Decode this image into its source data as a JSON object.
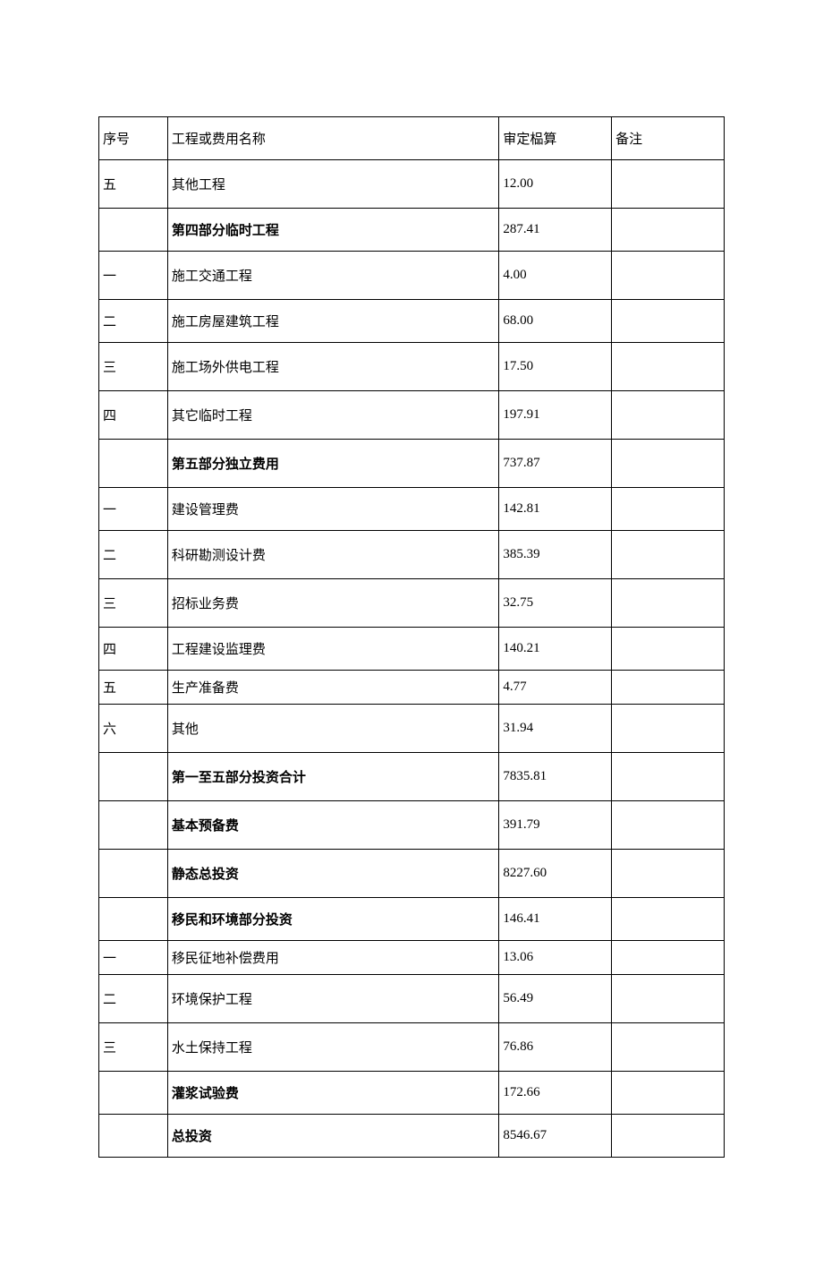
{
  "table": {
    "border_color": "#000000",
    "background_color": "#ffffff",
    "text_color": "#000000",
    "font_size": 15,
    "columns": [
      {
        "key": "seq",
        "label": "序号",
        "width_pct": 11
      },
      {
        "key": "name",
        "label": "工程或费用名称",
        "width_pct": 53
      },
      {
        "key": "value",
        "label": "审定榀算",
        "width_pct": 18
      },
      {
        "key": "remark",
        "label": "备注",
        "width_pct": 18
      }
    ],
    "rows": [
      {
        "seq": "五",
        "name": "其他工程",
        "value": "12.00",
        "remark": "",
        "bold": false,
        "height": "tall"
      },
      {
        "seq": "",
        "name": "第四部分临时工程",
        "value": "287.41",
        "remark": "",
        "bold": true,
        "height": ""
      },
      {
        "seq": "一",
        "name": "施工交通工程",
        "value": "4.00",
        "remark": "",
        "bold": false,
        "height": "tall"
      },
      {
        "seq": "二",
        "name": "施工房屋建筑工程",
        "value": "68.00",
        "remark": "",
        "bold": false,
        "height": ""
      },
      {
        "seq": "三",
        "name": "施工场外供电工程",
        "value": "17.50",
        "remark": "",
        "bold": false,
        "height": "tall"
      },
      {
        "seq": "四",
        "name": "其它临时工程",
        "value": "197.91",
        "remark": "",
        "bold": false,
        "height": "tall"
      },
      {
        "seq": "",
        "name": "第五部分独立费用",
        "value": "737.87",
        "remark": "",
        "bold": true,
        "height": "tall"
      },
      {
        "seq": "一",
        "name": "建设管理费",
        "value": "142.81",
        "remark": "",
        "bold": false,
        "height": ""
      },
      {
        "seq": "二",
        "name": "科研勘测设计费",
        "value": "385.39",
        "remark": "",
        "bold": false,
        "height": "tall"
      },
      {
        "seq": "三",
        "name": "招标业务费",
        "value": "32.75",
        "remark": "",
        "bold": false,
        "height": "tall"
      },
      {
        "seq": "四",
        "name": "工程建设监理费",
        "value": "140.21",
        "remark": "",
        "bold": false,
        "height": ""
      },
      {
        "seq": "五",
        "name": "生产准备费",
        "value": "4.77",
        "remark": "",
        "bold": false,
        "height": "short"
      },
      {
        "seq": "六",
        "name": "其他",
        "value": "31.94",
        "remark": "",
        "bold": false,
        "height": "tall"
      },
      {
        "seq": "",
        "name": "第一至五部分投资合计",
        "value": "7835.81",
        "remark": "",
        "bold": true,
        "height": "tall"
      },
      {
        "seq": "",
        "name": "基本预备费",
        "value": "391.79",
        "remark": "",
        "bold": true,
        "height": "tall"
      },
      {
        "seq": "",
        "name": "静态总投资",
        "value": "8227.60",
        "remark": "",
        "bold": true,
        "height": "tall"
      },
      {
        "seq": "",
        "name": "移民和环境部分投资",
        "value": "146.41",
        "remark": "",
        "bold": true,
        "height": ""
      },
      {
        "seq": "一",
        "name": "移民征地补偿费用",
        "value": "13.06",
        "remark": "",
        "bold": false,
        "height": "short"
      },
      {
        "seq": "二",
        "name": "环境保护工程",
        "value": "56.49",
        "remark": "",
        "bold": false,
        "height": "tall"
      },
      {
        "seq": "三",
        "name": "水土保持工程",
        "value": "76.86",
        "remark": "",
        "bold": false,
        "height": "tall"
      },
      {
        "seq": "",
        "name": "灌浆试验费",
        "value": "172.66",
        "remark": "",
        "bold": true,
        "height": ""
      },
      {
        "seq": "",
        "name": "总投资",
        "value": "8546.67",
        "remark": "",
        "bold": true,
        "height": ""
      }
    ]
  }
}
